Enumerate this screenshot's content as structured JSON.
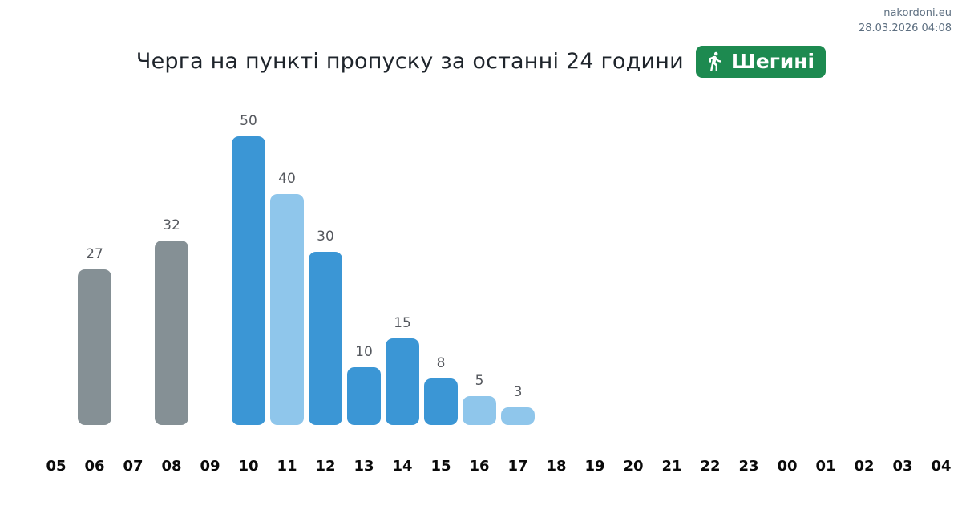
{
  "watermark": {
    "site": "nakordoni.eu",
    "datetime": "28.03.2026 04:08"
  },
  "badge": {
    "label": "Шегині",
    "icon": "pedestrian-icon",
    "background_color": "#1d8a50",
    "text_color": "#ffffff"
  },
  "chart_data": {
    "type": "bar",
    "title": "Черга на пункті пропуску за останні 24 години",
    "xlabel": "",
    "ylabel": "",
    "categories": [
      "05",
      "06",
      "07",
      "08",
      "09",
      "10",
      "11",
      "12",
      "13",
      "14",
      "15",
      "16",
      "17",
      "18",
      "19",
      "20",
      "21",
      "22",
      "23",
      "00",
      "01",
      "02",
      "03",
      "04"
    ],
    "values": [
      null,
      27,
      null,
      32,
      null,
      50,
      40,
      30,
      10,
      15,
      8,
      5,
      3,
      null,
      null,
      null,
      null,
      null,
      null,
      null,
      null,
      null,
      null,
      null
    ],
    "bar_color_roles": [
      null,
      "gray",
      null,
      "gray",
      null,
      "blue",
      "light",
      "blue",
      "blue",
      "blue",
      "blue",
      "light",
      "light",
      null,
      null,
      null,
      null,
      null,
      null,
      null,
      null,
      null,
      null,
      null
    ],
    "colors": {
      "blue": "#3b96d5",
      "light": "#8fc6eb",
      "gray": "#859095"
    },
    "value_label_color": "#55585e",
    "ylim": [
      0,
      50
    ],
    "grid": false,
    "legend": false,
    "data_labels": true
  }
}
